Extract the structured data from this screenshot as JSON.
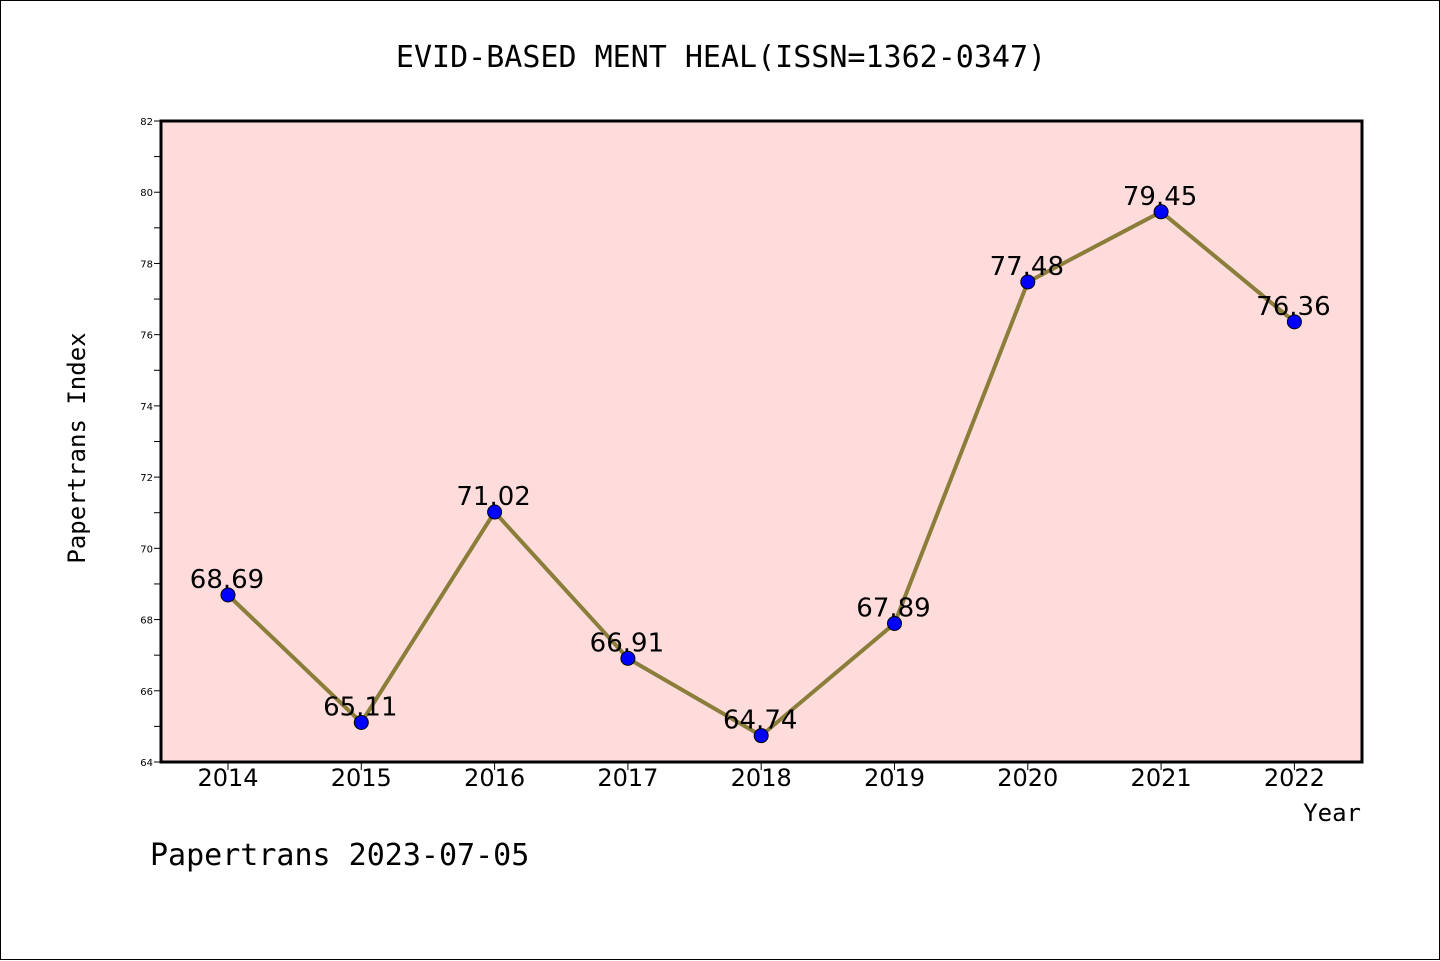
{
  "chart_data": {
    "type": "line",
    "title": "EVID-BASED MENT HEAL(ISSN=1362-0347)",
    "xlabel": "Year",
    "ylabel": "Papertrans Index",
    "x": [
      "2014",
      "2015",
      "2016",
      "2017",
      "2018",
      "2019",
      "2020",
      "2021",
      "2022"
    ],
    "series": [
      {
        "values": [
          68.69,
          65.11,
          71.02,
          66.91,
          64.74,
          67.89,
          77.48,
          79.45,
          76.36
        ],
        "labels": [
          "68.69",
          "65.11",
          "71.02",
          "66.91",
          "64.74",
          "67.89",
          "77.48",
          "79.45",
          "76.36"
        ]
      }
    ],
    "ylim": [
      64,
      82
    ],
    "yticks": [
      "64",
      "66",
      "68",
      "70",
      "72",
      "74",
      "76",
      "78",
      "80",
      "82"
    ],
    "grid": false,
    "legend": "none",
    "line_color": "#8b7d3a",
    "marker_color": "#0000ff",
    "plot_background": "#ffdcdc"
  },
  "footer": "Papertrans 2023-07-05"
}
